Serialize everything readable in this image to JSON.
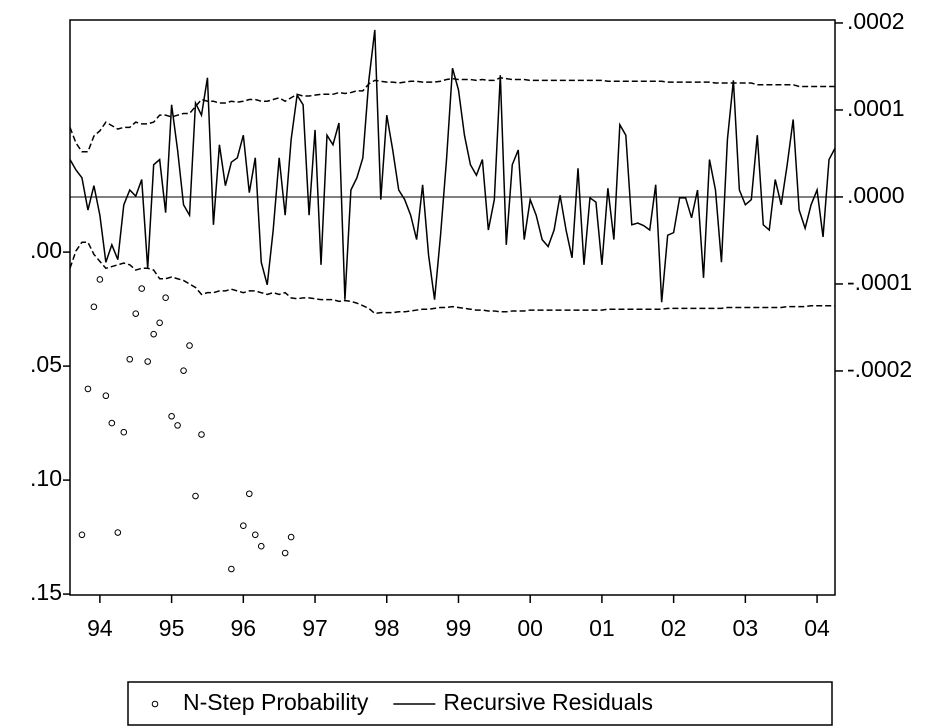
{
  "chart_data": {
    "type": "line",
    "categories": [
      null,
      null,
      null,
      null,
      null,
      "94",
      null,
      null,
      null,
      null,
      null,
      null,
      null,
      null,
      null,
      null,
      null,
      "95",
      null,
      null,
      null,
      null,
      null,
      null,
      null,
      null,
      null,
      null,
      null,
      "96",
      null,
      null,
      null,
      null,
      null,
      null,
      null,
      null,
      null,
      null,
      null,
      "97",
      null,
      null,
      null,
      null,
      null,
      null,
      null,
      null,
      null,
      null,
      null,
      "98",
      null,
      null,
      null,
      null,
      null,
      null,
      null,
      null,
      null,
      null,
      null,
      "99",
      null,
      null,
      null,
      null,
      null,
      null,
      null,
      null,
      null,
      null,
      null,
      "00",
      null,
      null,
      null,
      null,
      null,
      null,
      null,
      null,
      null,
      null,
      null,
      "01",
      null,
      null,
      null,
      null,
      null,
      null,
      null,
      null,
      null,
      null,
      null,
      "02",
      null,
      null,
      null,
      null,
      null,
      null,
      null,
      null,
      null,
      null,
      null,
      "03",
      null,
      null,
      null,
      null,
      null,
      null,
      null,
      null,
      null,
      null,
      null,
      "04",
      null,
      null,
      null
    ],
    "ylim": [
      0.1504,
      -0.1018
    ],
    "yticks": [
      {
        "value": 0,
        "label": ".00"
      },
      {
        "value": 0.05,
        "label": ".05"
      },
      {
        "value": 0.1,
        "label": ".10"
      },
      {
        "value": 0.15,
        "label": ".15"
      }
    ],
    "y2lim": [
      -0.0004575,
      0.0002034
    ],
    "y2ticks": [
      {
        "value": 0.0002,
        "label": ".0002"
      },
      {
        "value": 0.0001,
        "label": ".0001"
      },
      {
        "value": 0,
        "label": ".0000"
      },
      {
        "value": -0.0001,
        "label": "-.0001"
      },
      {
        "value": -0.0002,
        "label": "-.0002"
      }
    ],
    "zero_line": true,
    "legend": "bottom",
    "series": [
      {
        "name": "N-Step Probability",
        "style": "marker",
        "color": "#000000",
        "values": [
          null,
          null,
          0.124,
          0.06,
          0.024,
          0.012,
          0.063,
          0.075,
          0.123,
          0.079,
          0.047,
          0.027,
          0.016,
          0.048,
          0.036,
          0.031,
          0.02,
          0.072,
          0.076,
          0.052,
          0.041,
          0.107,
          0.08,
          null,
          null,
          null,
          null,
          0.139,
          null,
          0.12,
          0.106,
          0.124,
          0.129,
          null,
          null,
          null,
          0.132,
          0.125,
          null,
          null,
          null,
          null,
          null,
          null,
          null,
          null,
          null,
          null,
          null,
          null,
          null,
          null,
          null,
          null,
          null,
          null,
          null,
          null,
          null,
          null,
          null,
          null,
          null,
          null,
          null,
          null,
          null,
          null,
          null,
          null,
          null,
          null,
          null,
          null,
          null,
          null,
          null,
          null,
          null,
          null,
          null,
          null,
          null,
          null,
          null,
          null,
          null,
          null,
          null,
          null,
          null,
          null,
          null,
          null,
          null,
          null,
          null,
          null,
          null,
          null,
          null,
          null,
          null,
          null,
          null,
          null,
          null,
          null,
          null,
          null,
          null,
          null,
          null,
          null,
          null,
          null,
          null,
          null,
          null,
          null,
          null,
          null,
          null,
          null,
          null,
          null,
          null,
          null,
          null
        ]
      },
      {
        "name": "Recursive Residuals",
        "style": "solid",
        "axis": "y2",
        "color": "#000000",
        "values": [
          4.3e-05,
          3.1e-05,
          2.2e-05,
          -1.5e-05,
          1.3e-05,
          -2.1e-05,
          -7.5e-05,
          -5.5e-05,
          -7.2e-05,
          -9e-06,
          8e-06,
          1e-06,
          2e-05,
          -8.2e-05,
          3.7e-05,
          4.3e-05,
          -1.8e-05,
          0.000106,
          5.4e-05,
          -9e-06,
          -2.1e-05,
          0.000108,
          9.4e-05,
          0.000137,
          -3.2e-05,
          6e-05,
          1.3e-05,
          4e-05,
          4.5e-05,
          7.1e-05,
          5e-06,
          4.5e-05,
          -7.5e-05,
          -0.000101,
          -3.8e-05,
          4.5e-05,
          -2.1e-05,
          6.6e-05,
          0.000117,
          0.000106,
          -2.1e-05,
          7.7e-05,
          -7.8e-05,
          7.1e-05,
          6e-05,
          8.5e-05,
          -0.000118,
          8e-06,
          2.2e-05,
          4.5e-05,
          0.000134,
          0.000192,
          -3e-06,
          9.4e-05,
          5.4e-05,
          8e-06,
          -3e-06,
          -2.1e-05,
          -4.9e-05,
          1.4e-05,
          -6.7e-05,
          -0.000118,
          -4.4e-05,
          4.3e-05,
          0.000148,
          0.000123,
          7.1e-05,
          3.7e-05,
          2.5e-05,
          4.3e-05,
          -3.8e-05,
          -3e-06,
          0.00014,
          -5.5e-05,
          3.7e-05,
          5.4e-05,
          -4.9e-05,
          -3e-06,
          -2.1e-05,
          -4.9e-05,
          -5.7e-05,
          -3.8e-05,
          2e-06,
          -3.8e-05,
          -7e-05,
          3.3e-05,
          -7.8e-05,
          -1e-06,
          -6e-06,
          -7.8e-05,
          1e-05,
          -4.9e-05,
          8.3e-05,
          7.1e-05,
          -3.2e-05,
          -3e-05,
          -3.3e-05,
          -3.8e-05,
          1.4e-05,
          -0.000121,
          -4.4e-05,
          -4.1e-05,
          -1e-06,
          -1e-06,
          -2.4e-05,
          8e-06,
          -9.3e-05,
          4.3e-05,
          8e-06,
          -7.5e-05,
          6.6e-05,
          0.000134,
          8e-06,
          -9e-06,
          -3e-06,
          7.1e-05,
          -3.2e-05,
          -3.8e-05,
          2e-05,
          -9e-06,
          3.7e-05,
          8.9e-05,
          -1.5e-05,
          -3.6e-05,
          -9e-06,
          8e-06,
          -4.6e-05,
          4.3e-05,
          5.6e-05
        ]
      },
      {
        "style": "dashed",
        "axis": "y2",
        "color": "#000000",
        "values": [
          8e-05,
          6.2e-05,
          5.2e-05,
          5.2e-05,
          7e-05,
          7.6e-05,
          8.6e-05,
          8.2e-05,
          7.8e-05,
          8e-05,
          8e-05,
          8.6e-05,
          8.4e-05,
          8.4e-05,
          8.6e-05,
          9.4e-05,
          9.4e-05,
          9.2e-05,
          9.4e-05,
          9.6e-05,
          9.6e-05,
          0.000104,
          0.000112,
          0.00011,
          0.00011,
          0.000108,
          0.000108,
          0.00011,
          0.000109,
          0.00011,
          0.000112,
          0.000112,
          0.00011,
          0.00011,
          0.000112,
          0.000114,
          0.00011,
          0.000114,
          0.000118,
          0.000116,
          0.000116,
          0.000117,
          0.000118,
          0.000118,
          0.000118,
          0.00012,
          0.000119,
          0.00012,
          0.000122,
          0.000122,
          0.00013,
          0.000134,
          0.000133,
          0.000132,
          0.000132,
          0.000131,
          0.000132,
          0.000133,
          0.000133,
          0.000132,
          0.000132,
          0.000132,
          0.000133,
          0.000135,
          0.000136,
          0.000135,
          0.000135,
          0.000135,
          0.000134,
          0.000135,
          0.000134,
          0.000134,
          0.000137,
          0.000136,
          0.000135,
          0.000135,
          0.000135,
          0.000134,
          0.000134,
          0.000134,
          0.000134,
          0.000134,
          0.000134,
          0.000134,
          0.000134,
          0.000134,
          0.000134,
          0.000134,
          0.000134,
          0.000134,
          0.000133,
          0.000133,
          0.000133,
          0.000133,
          0.000133,
          0.000133,
          0.000133,
          0.000133,
          0.000133,
          0.000133,
          0.000132,
          0.000132,
          0.000132,
          0.000132,
          0.000132,
          0.000132,
          0.000132,
          0.000132,
          0.000131,
          0.000131,
          0.000131,
          0.000131,
          0.000131,
          0.000131,
          0.000131,
          0.000129,
          0.000129,
          0.000129,
          0.000129,
          0.000129,
          0.000129,
          0.000129,
          0.000127,
          0.000127,
          0.000127,
          0.000127,
          0.000127,
          0.000127,
          0.000127
        ]
      },
      {
        "style": "dashed",
        "axis": "y2",
        "color": "#000000",
        "values": [
          -8.2e-05,
          -6.2e-05,
          -5.2e-05,
          -5.2e-05,
          -6.6e-05,
          -7.4e-05,
          -8.2e-05,
          -8e-05,
          -7.8e-05,
          -7.6e-05,
          -7.8e-05,
          -8.4e-05,
          -8.2e-05,
          -8.2e-05,
          -8.4e-05,
          -9.4e-05,
          -9.4e-05,
          -9.2e-05,
          -9.4e-05,
          -9.6e-05,
          -0.0001,
          -0.000104,
          -0.000112,
          -0.00011,
          -0.00011,
          -0.000108,
          -0.000108,
          -0.000106,
          -0.000108,
          -0.00011,
          -0.000108,
          -0.000108,
          -0.00011,
          -0.000112,
          -0.00011,
          -0.000112,
          -0.00011,
          -0.000116,
          -0.000117,
          -0.000116,
          -0.000116,
          -0.000117,
          -0.000118,
          -0.000118,
          -0.000118,
          -0.00012,
          -0.000119,
          -0.00012,
          -0.000122,
          -0.000125,
          -0.000128,
          -0.000134,
          -0.000133,
          -0.000133,
          -0.000133,
          -0.000132,
          -0.000132,
          -0.000131,
          -0.00013,
          -0.000129,
          -0.000129,
          -0.000128,
          -0.000127,
          -0.000127,
          -0.000126,
          -0.000127,
          -0.000128,
          -0.000129,
          -0.00013,
          -0.00013,
          -0.000131,
          -0.000131,
          -0.000132,
          -0.000132,
          -0.000131,
          -0.000131,
          -0.000131,
          -0.00013,
          -0.00013,
          -0.00013,
          -0.00013,
          -0.00013,
          -0.00013,
          -0.00013,
          -0.00013,
          -0.00013,
          -0.00013,
          -0.00013,
          -0.00013,
          -0.00013,
          -0.000129,
          -0.000129,
          -0.000129,
          -0.000129,
          -0.000129,
          -0.000129,
          -0.000129,
          -0.000129,
          -0.000129,
          -0.000129,
          -0.000128,
          -0.000128,
          -0.000128,
          -0.000128,
          -0.000128,
          -0.000128,
          -0.000128,
          -0.000128,
          -0.000128,
          -0.000128,
          -0.000127,
          -0.000127,
          -0.000127,
          -0.000127,
          -0.000127,
          -0.000127,
          -0.000127,
          -0.000127,
          -0.000127,
          -0.000127,
          -0.000126,
          -0.000126,
          -0.000126,
          -0.000126,
          -0.000125,
          -0.000125,
          -0.000125,
          -0.000125,
          -0.000125
        ]
      }
    ]
  }
}
